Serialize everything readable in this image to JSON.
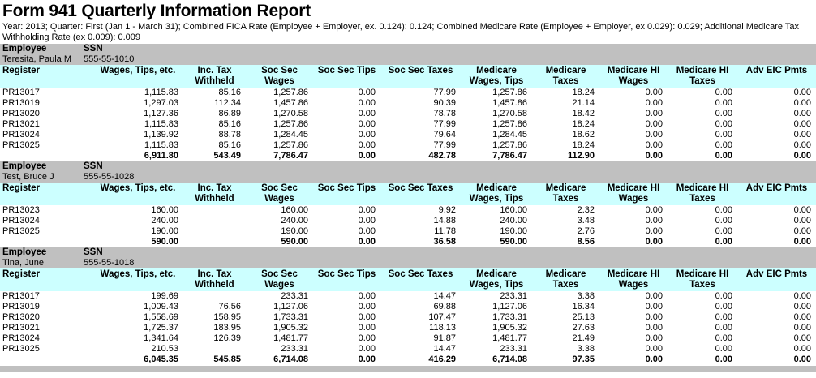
{
  "report": {
    "title": "Form 941 Quarterly Information Report",
    "subtitle": "Year: 2013; Quarter: First (Jan 1 - March 31); Combined FICA Rate (Employee + Employer, ex. 0.124): 0.124; Combined Medicare Rate (Employee + Employer, ex 0.029): 0.029; Additional Medicare Tax Withholding Rate (ex 0.009): 0.009"
  },
  "labels": {
    "employee": "Employee",
    "ssn": "SSN"
  },
  "columns": [
    "Register",
    "Wages, Tips, etc.",
    "Inc. Tax\nWithheld",
    "Soc Sec\nWages",
    "Soc Sec Tips",
    "Soc Sec Taxes",
    "Medicare\nWages, Tips",
    "Medicare\nTaxes",
    "Medicare HI\nWages",
    "Medicare HI\nTaxes",
    "Adv EIC Pmts"
  ],
  "sections": [
    {
      "employee_name": "Teresita, Paula M",
      "ssn": "555-55-1010",
      "rows": [
        [
          "PR13017",
          "1,115.83",
          "85.16",
          "1,257.86",
          "0.00",
          "77.99",
          "1,257.86",
          "18.24",
          "0.00",
          "0.00",
          "0.00"
        ],
        [
          "PR13019",
          "1,297.03",
          "112.34",
          "1,457.86",
          "0.00",
          "90.39",
          "1,457.86",
          "21.14",
          "0.00",
          "0.00",
          "0.00"
        ],
        [
          "PR13020",
          "1,127.36",
          "86.89",
          "1,270.58",
          "0.00",
          "78.78",
          "1,270.58",
          "18.42",
          "0.00",
          "0.00",
          "0.00"
        ],
        [
          "PR13021",
          "1,115.83",
          "85.16",
          "1,257.86",
          "0.00",
          "77.99",
          "1,257.86",
          "18.24",
          "0.00",
          "0.00",
          "0.00"
        ],
        [
          "PR13024",
          "1,139.92",
          "88.78",
          "1,284.45",
          "0.00",
          "79.64",
          "1,284.45",
          "18.62",
          "0.00",
          "0.00",
          "0.00"
        ],
        [
          "PR13025",
          "1,115.83",
          "85.16",
          "1,257.86",
          "0.00",
          "77.99",
          "1,257.86",
          "18.24",
          "0.00",
          "0.00",
          "0.00"
        ]
      ],
      "totals": [
        "",
        "6,911.80",
        "543.49",
        "7,786.47",
        "0.00",
        "482.78",
        "7,786.47",
        "112.90",
        "0.00",
        "0.00",
        "0.00"
      ]
    },
    {
      "employee_name": "Test, Bruce J",
      "ssn": "555-55-1028",
      "rows": [
        [
          "PR13023",
          "160.00",
          "",
          "160.00",
          "0.00",
          "9.92",
          "160.00",
          "2.32",
          "0.00",
          "0.00",
          "0.00"
        ],
        [
          "PR13024",
          "240.00",
          "",
          "240.00",
          "0.00",
          "14.88",
          "240.00",
          "3.48",
          "0.00",
          "0.00",
          "0.00"
        ],
        [
          "PR13025",
          "190.00",
          "",
          "190.00",
          "0.00",
          "11.78",
          "190.00",
          "2.76",
          "0.00",
          "0.00",
          "0.00"
        ]
      ],
      "totals": [
        "",
        "590.00",
        "",
        "590.00",
        "0.00",
        "36.58",
        "590.00",
        "8.56",
        "0.00",
        "0.00",
        "0.00"
      ]
    },
    {
      "employee_name": "Tina, June",
      "ssn": "555-55-1018",
      "rows": [
        [
          "PR13017",
          "199.69",
          "",
          "233.31",
          "0.00",
          "14.47",
          "233.31",
          "3.38",
          "0.00",
          "0.00",
          "0.00"
        ],
        [
          "PR13019",
          "1,009.43",
          "76.56",
          "1,127.06",
          "0.00",
          "69.88",
          "1,127.06",
          "16.34",
          "0.00",
          "0.00",
          "0.00"
        ],
        [
          "PR13020",
          "1,558.69",
          "158.95",
          "1,733.31",
          "0.00",
          "107.47",
          "1,733.31",
          "25.13",
          "0.00",
          "0.00",
          "0.00"
        ],
        [
          "PR13021",
          "1,725.37",
          "183.95",
          "1,905.32",
          "0.00",
          "118.13",
          "1,905.32",
          "27.63",
          "0.00",
          "0.00",
          "0.00"
        ],
        [
          "PR13024",
          "1,341.64",
          "126.39",
          "1,481.77",
          "0.00",
          "91.87",
          "1,481.77",
          "21.49",
          "0.00",
          "0.00",
          "0.00"
        ],
        [
          "PR13025",
          "210.53",
          "",
          "233.31",
          "0.00",
          "14.47",
          "233.31",
          "3.38",
          "0.00",
          "0.00",
          "0.00"
        ]
      ],
      "totals": [
        "",
        "6,045.35",
        "545.85",
        "6,714.08",
        "0.00",
        "416.29",
        "6,714.08",
        "97.35",
        "0.00",
        "0.00",
        "0.00"
      ]
    }
  ],
  "colors": {
    "column_header_band": "#CCFFFF",
    "employee_band": "#C0C0C0",
    "text": "#000000",
    "background": "#FFFFFF"
  }
}
